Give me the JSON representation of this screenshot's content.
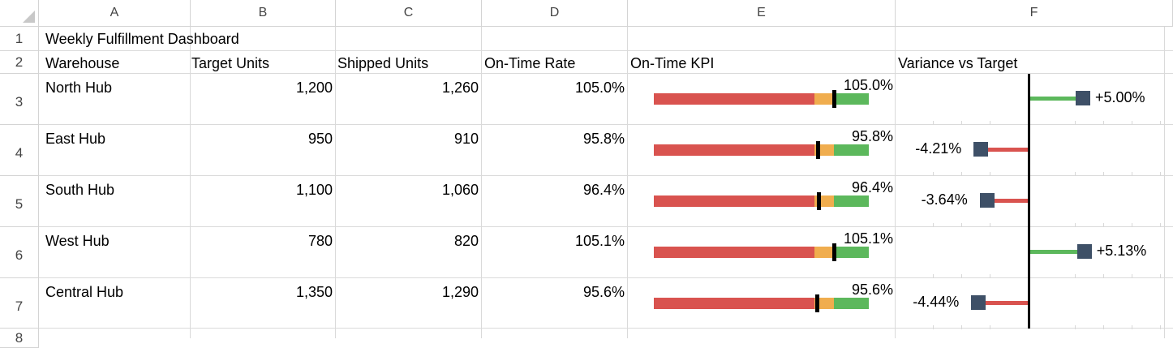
{
  "columns": [
    "A",
    "B",
    "C",
    "D",
    "E",
    "F"
  ],
  "row_numbers": [
    "1",
    "2",
    "3",
    "4",
    "5",
    "6",
    "7",
    "8"
  ],
  "title": "Weekly Fulfillment Dashboard",
  "headers": {
    "warehouse": "Warehouse",
    "target": "Target Units",
    "shipped": "Shipped Units",
    "rate": "On-Time Rate",
    "kpi": "On-Time KPI",
    "variance": "Variance vs Target"
  },
  "rows": [
    {
      "warehouse": "North Hub",
      "target": "1,200",
      "shipped": "1,260",
      "rate": "105.0%",
      "kpi_label": "105.0%",
      "rate_value": 105.0,
      "variance": "+5.00%",
      "variance_value": 5.0
    },
    {
      "warehouse": "East Hub",
      "target": "950",
      "shipped": "910",
      "rate": "95.8%",
      "kpi_label": "95.8%",
      "rate_value": 95.8,
      "variance": "-4.21%",
      "variance_value": -4.21
    },
    {
      "warehouse": "South Hub",
      "target": "1,100",
      "shipped": "1,060",
      "rate": "96.4%",
      "kpi_label": "96.4%",
      "rate_value": 96.4,
      "variance": "-3.64%",
      "variance_value": -3.64
    },
    {
      "warehouse": "West Hub",
      "target": "780",
      "shipped": "820",
      "rate": "105.1%",
      "kpi_label": "105.1%",
      "rate_value": 105.1,
      "variance": "+5.13%",
      "variance_value": 5.13
    },
    {
      "warehouse": "Central Hub",
      "target": "1,350",
      "shipped": "1,290",
      "rate": "95.6%",
      "kpi_label": "95.6%",
      "rate_value": 95.6,
      "variance": "-4.44%",
      "variance_value": -4.44
    }
  ],
  "colors": {
    "band_red": "#d9534f",
    "band_orange": "#f0ad4e",
    "band_green": "#5cb85c",
    "variance_marker": "#3e5067",
    "positive_bar": "#5cb85c",
    "negative_bar": "#d9534f",
    "grid": "#dadada"
  }
}
